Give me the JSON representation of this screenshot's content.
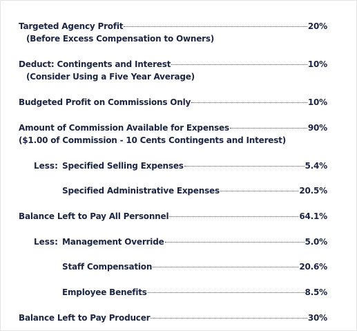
{
  "items": [
    {
      "label": "Targeted Agency Profit",
      "value": "20%",
      "note": "(Before Excess Compensation to Owners)"
    },
    {
      "label": "Deduct: Contingents and Interest",
      "value": "10%",
      "note": "(Consider Using a Five Year Average)"
    },
    {
      "label": "Budgeted Profit on Commissions Only",
      "value": "10%"
    },
    {
      "label": "Amount of Commission Available for Expenses",
      "value": "90%",
      "note": "($1.00 of Commission - 10 Cents Contingents and Interest)"
    },
    {
      "prefix": "Less:",
      "label": "Specified Selling Expenses",
      "value": "5.4%"
    },
    {
      "label": "Specified Administrative Expenses",
      "value": "20.5%"
    },
    {
      "label": "Balance Left to Pay All Personnel",
      "value": "64.1%"
    },
    {
      "prefix": "Less:",
      "label": "Management Override",
      "value": "5.0%"
    },
    {
      "label": "Staff Compensation",
      "value": "20.6%"
    },
    {
      "label": "Employee Benefits",
      "value": "8.5%"
    },
    {
      "label": "Balance Left to Pay Producer",
      "value": "30%"
    }
  ]
}
